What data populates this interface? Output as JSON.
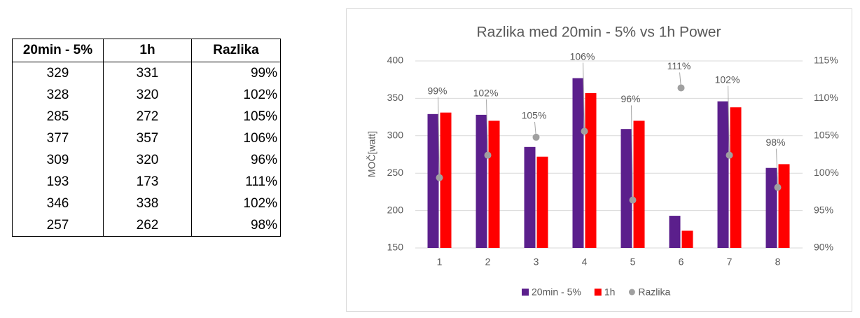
{
  "table": {
    "header": [
      "20min - 5%",
      "1h",
      "Razlika"
    ],
    "rows": [
      [
        "329",
        "331",
        "99%"
      ],
      [
        "328",
        "320",
        "102%"
      ],
      [
        "285",
        "272",
        "105%"
      ],
      [
        "377",
        "357",
        "106%"
      ],
      [
        "309",
        "320",
        "96%"
      ],
      [
        "193",
        "173",
        "111%"
      ],
      [
        "346",
        "338",
        "102%"
      ],
      [
        "257",
        "262",
        "98%"
      ]
    ]
  },
  "chart_data": {
    "type": "bar",
    "title": "Razlika med 20min - 5% vs 1h Power",
    "y_label": "MOČ[watt]",
    "categories": [
      "1",
      "2",
      "3",
      "4",
      "5",
      "6",
      "7",
      "8"
    ],
    "series": [
      {
        "name": "20min - 5%",
        "color": "#5b1f8c",
        "values": [
          329,
          328,
          285,
          377,
          309,
          193,
          346,
          257
        ]
      },
      {
        "name": "1h",
        "color": "#ff0000",
        "values": [
          331,
          320,
          272,
          357,
          320,
          173,
          338,
          262
        ]
      },
      {
        "name": "Razlika",
        "color": "#a0a0a0",
        "type": "scatter",
        "axis": "y2",
        "values": [
          99.4,
          102.4,
          104.8,
          105.6,
          96.4,
          111.4,
          102.4,
          98.1
        ],
        "value_labels": [
          "99%",
          "102%",
          "105%",
          "106%",
          "96%",
          "111%",
          "102%",
          "98%"
        ]
      }
    ],
    "ylim": [
      150,
      400
    ],
    "yticks": [
      150,
      200,
      250,
      300,
      350,
      400
    ],
    "y2lim": [
      90,
      115
    ],
    "y2ticks": [
      {
        "value": 90,
        "label": "90%"
      },
      {
        "value": 95,
        "label": "95%"
      },
      {
        "value": 100,
        "label": "100%"
      },
      {
        "value": 105,
        "label": "105%"
      },
      {
        "value": 110,
        "label": "110%"
      },
      {
        "value": 115,
        "label": "115%"
      }
    ],
    "grid": true,
    "legend": "bottom"
  }
}
